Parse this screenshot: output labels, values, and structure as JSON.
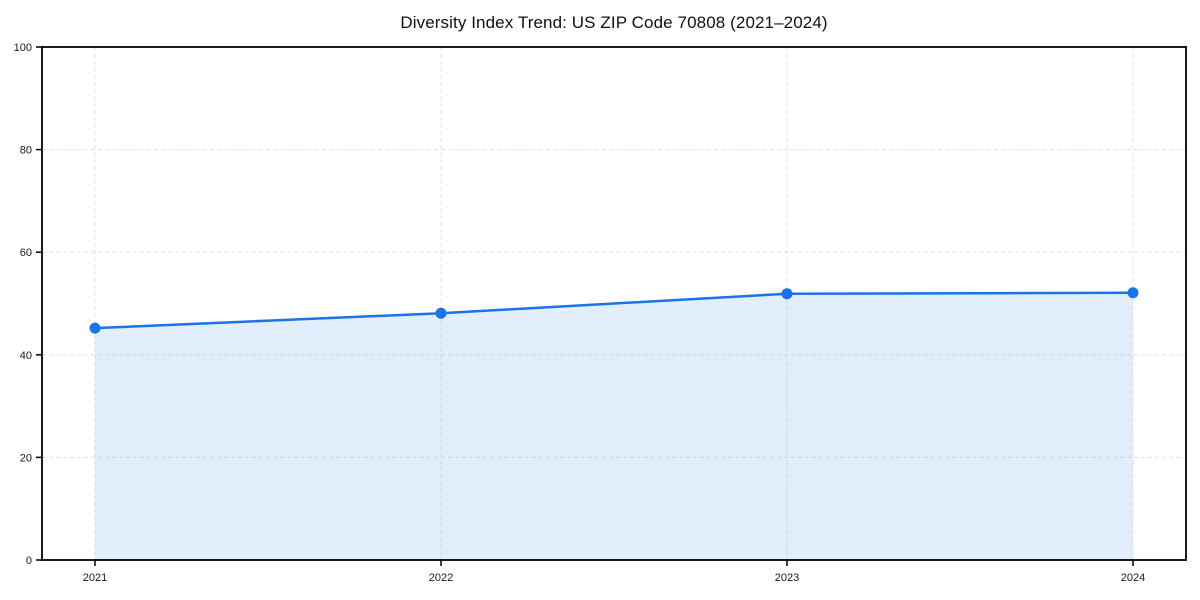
{
  "page": {
    "background": "#ffffff"
  },
  "chart_data": {
    "type": "area",
    "title": "Diversity Index Trend: US ZIP Code 70808 (2021–2024)",
    "x": [
      2021,
      2022,
      2023,
      2024
    ],
    "xticks": [
      "2021",
      "2022",
      "2023",
      "2024"
    ],
    "series": [
      {
        "name": "Diversity Index",
        "values": [
          45.2,
          48.1,
          51.9,
          52.1
        ]
      }
    ],
    "xlabel": "",
    "ylabel": "",
    "ylim": [
      0,
      100
    ],
    "yticks": [
      0,
      20,
      40,
      60,
      80,
      100
    ],
    "grid": "dashed",
    "legend": "none",
    "marker": "circle",
    "colors": {
      "line": "#1a73e8",
      "marker": "#1a73e8",
      "area_fill": "rgba(26,115,232,0.12)",
      "axis": "#000000",
      "grid": "#e1e1e1",
      "tick_label": "#1a1a1a",
      "title": "#111111"
    }
  }
}
